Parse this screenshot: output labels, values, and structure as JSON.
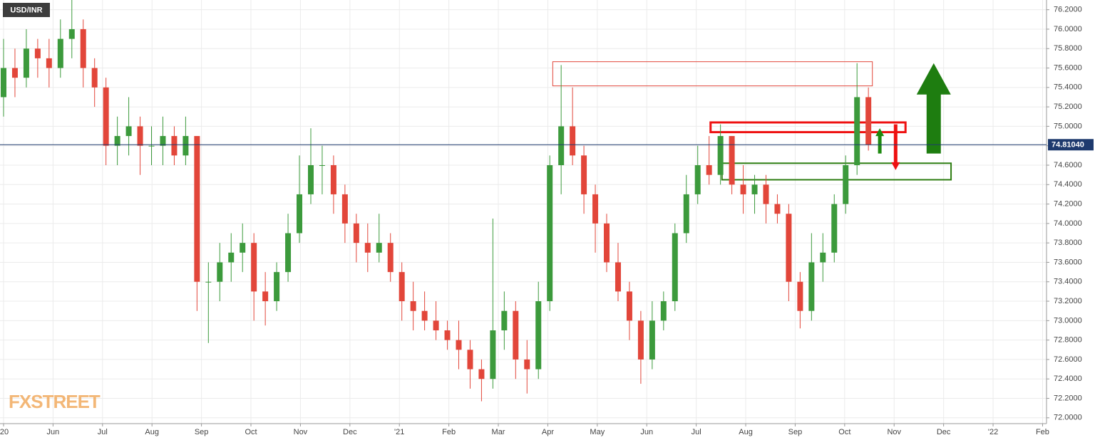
{
  "chart_data": {
    "type": "candlestick",
    "title": "USD/INR",
    "watermark": "FXSTREET",
    "x": [
      0,
      0.23,
      0.46,
      0.69,
      0.92,
      1.15,
      1.38,
      1.61,
      1.84,
      2.07,
      2.3,
      2.53,
      2.76,
      2.99,
      3.22,
      3.45,
      3.68,
      3.91,
      4.14,
      4.37,
      4.6,
      4.83,
      5.06,
      5.29,
      5.52,
      5.75,
      5.98,
      6.21,
      6.44,
      6.67,
      6.9,
      7.13,
      7.36,
      7.59,
      7.82,
      8.05,
      8.28,
      8.51,
      8.74,
      8.97,
      9.2,
      9.43,
      9.66,
      9.89,
      10.12,
      10.35,
      10.58,
      10.81,
      11.04,
      11.27,
      11.5,
      11.73,
      11.96,
      12.19,
      12.42,
      12.65,
      12.88,
      13.11,
      13.34,
      13.57,
      13.8,
      14.03,
      14.26,
      14.49,
      14.72,
      14.95,
      15.18,
      15.41,
      15.64,
      15.87,
      16.1,
      16.33,
      16.56,
      16.79,
      17.02,
      17.25,
      17.48
    ],
    "open": [
      75.3,
      75.6,
      75.5,
      75.8,
      75.7,
      75.6,
      75.9,
      76.0,
      75.6,
      75.4,
      74.8,
      74.9,
      75.0,
      74.8,
      74.8,
      74.9,
      74.7,
      74.9,
      73.4,
      73.4,
      73.6,
      73.7,
      73.8,
      73.3,
      73.2,
      73.5,
      73.9,
      74.3,
      74.6,
      74.6,
      74.3,
      74.0,
      73.8,
      73.7,
      73.8,
      73.5,
      73.2,
      73.1,
      73.0,
      72.9,
      72.8,
      72.7,
      72.5,
      72.4,
      72.9,
      73.1,
      72.6,
      72.5,
      73.2,
      74.6,
      75.0,
      74.7,
      74.3,
      74.0,
      73.6,
      73.3,
      73.0,
      72.6,
      73.0,
      73.2,
      73.9,
      74.3,
      74.6,
      74.5,
      74.9,
      74.4,
      74.3,
      74.4,
      74.2,
      74.1,
      73.4,
      73.1,
      73.6,
      73.7,
      74.2,
      74.6,
      75.3
    ],
    "high": [
      75.9,
      75.8,
      76.0,
      75.9,
      75.9,
      76.1,
      76.3,
      76.1,
      75.7,
      75.5,
      75.1,
      75.3,
      75.1,
      75.0,
      75.1,
      75.0,
      75.1,
      74.9,
      73.6,
      73.8,
      73.9,
      74.0,
      73.9,
      73.5,
      73.6,
      74.1,
      74.7,
      74.98,
      74.8,
      74.7,
      74.4,
      74.1,
      74.0,
      74.1,
      73.9,
      73.6,
      73.4,
      73.3,
      73.2,
      73.0,
      73.0,
      72.8,
      72.6,
      74.05,
      73.3,
      73.2,
      72.8,
      73.4,
      74.7,
      75.63,
      75.4,
      74.8,
      74.4,
      74.1,
      73.8,
      73.4,
      73.1,
      73.2,
      73.3,
      74.0,
      74.5,
      74.8,
      74.9,
      75.02,
      74.9,
      74.6,
      74.5,
      74.5,
      74.3,
      74.2,
      73.5,
      73.9,
      73.9,
      74.3,
      74.7,
      75.65,
      75.4
    ],
    "low": [
      75.1,
      75.3,
      75.4,
      75.5,
      75.4,
      75.5,
      75.7,
      75.4,
      75.2,
      74.6,
      74.6,
      74.7,
      74.5,
      74.6,
      74.6,
      74.6,
      74.6,
      73.1,
      72.77,
      73.2,
      73.4,
      73.5,
      73.0,
      72.95,
      73.1,
      73.4,
      73.8,
      74.2,
      74.3,
      74.1,
      73.8,
      73.6,
      73.5,
      73.6,
      73.4,
      73.0,
      72.9,
      72.9,
      72.8,
      72.7,
      72.5,
      72.3,
      72.17,
      72.3,
      72.7,
      72.4,
      72.25,
      72.4,
      73.1,
      74.3,
      74.6,
      74.1,
      73.7,
      73.5,
      73.2,
      72.8,
      72.35,
      72.5,
      72.9,
      73.1,
      73.8,
      74.2,
      74.4,
      74.4,
      74.3,
      74.1,
      74.1,
      74.0,
      74.0,
      73.2,
      72.92,
      73.0,
      73.4,
      73.6,
      74.1,
      74.5,
      74.75
    ],
    "close": [
      75.6,
      75.5,
      75.8,
      75.7,
      75.6,
      75.9,
      76.0,
      75.6,
      75.4,
      74.8,
      74.9,
      75.0,
      74.8,
      74.8,
      74.9,
      74.7,
      74.9,
      73.4,
      73.4,
      73.6,
      73.7,
      73.8,
      73.3,
      73.2,
      73.5,
      73.9,
      74.3,
      74.6,
      74.6,
      74.3,
      74.0,
      73.8,
      73.7,
      73.8,
      73.5,
      73.2,
      73.1,
      73.0,
      72.9,
      72.8,
      72.7,
      72.5,
      72.4,
      72.9,
      73.1,
      72.6,
      72.5,
      73.2,
      74.6,
      75.0,
      74.7,
      74.3,
      74.0,
      73.6,
      73.3,
      73.0,
      72.6,
      73.0,
      73.2,
      73.9,
      74.3,
      74.6,
      74.5,
      74.9,
      74.4,
      74.3,
      74.4,
      74.2,
      74.1,
      73.4,
      73.1,
      73.6,
      73.7,
      74.2,
      74.6,
      75.3,
      74.81
    ],
    "up_color": "#3c9a3c",
    "down_color": "#e2463a",
    "last_price": {
      "value": 74.8104,
      "label": "74.81040"
    },
    "last_price_color": "#1e3a6e",
    "xlim": [
      -0.072,
      21.08
    ],
    "xticks": [
      {
        "value": 0,
        "label": "'20"
      },
      {
        "value": 1,
        "label": "Jun"
      },
      {
        "value": 2,
        "label": "Jul"
      },
      {
        "value": 3,
        "label": "Aug"
      },
      {
        "value": 4,
        "label": "Sep"
      },
      {
        "value": 5,
        "label": "Oct"
      },
      {
        "value": 6,
        "label": "Nov"
      },
      {
        "value": 7,
        "label": "Dec"
      },
      {
        "value": 8,
        "label": "'21"
      },
      {
        "value": 9,
        "label": "Feb"
      },
      {
        "value": 10,
        "label": "Mar"
      },
      {
        "value": 11,
        "label": "Apr"
      },
      {
        "value": 12,
        "label": "May"
      },
      {
        "value": 13,
        "label": "Jun"
      },
      {
        "value": 14,
        "label": "Jul"
      },
      {
        "value": 15,
        "label": "Aug"
      },
      {
        "value": 16,
        "label": "Sep"
      },
      {
        "value": 17,
        "label": "Oct"
      },
      {
        "value": 18,
        "label": "Nov"
      },
      {
        "value": 19,
        "label": "Dec"
      },
      {
        "value": 20,
        "label": "'22"
      },
      {
        "value": 21,
        "label": "Feb"
      }
    ],
    "ylim": [
      71.94,
      76.3
    ],
    "yticks": [
      {
        "value": 72,
        "label": "72.0000"
      },
      {
        "value": 72.2,
        "label": "72.2000"
      },
      {
        "value": 72.4,
        "label": "72.4000"
      },
      {
        "value": 72.6,
        "label": "72.6000"
      },
      {
        "value": 72.8,
        "label": "72.8000"
      },
      {
        "value": 73,
        "label": "73.0000"
      },
      {
        "value": 73.2,
        "label": "73.2000"
      },
      {
        "value": 73.4,
        "label": "73.4000"
      },
      {
        "value": 73.6,
        "label": "73.6000"
      },
      {
        "value": 73.8,
        "label": "73.8000"
      },
      {
        "value": 74,
        "label": "74.0000"
      },
      {
        "value": 74.2,
        "label": "74.2000"
      },
      {
        "value": 74.4,
        "label": "74.4000"
      },
      {
        "value": 74.6,
        "label": "74.6000"
      },
      {
        "value": 74.8,
        "label": "74.8000"
      },
      {
        "value": 75,
        "label": "75.0000"
      },
      {
        "value": 75.2,
        "label": "75.2000"
      },
      {
        "value": 75.4,
        "label": "75.4000"
      },
      {
        "value": 75.6,
        "label": "75.6000"
      },
      {
        "value": 75.8,
        "label": "75.8000"
      },
      {
        "value": 76,
        "label": "76.0000"
      },
      {
        "value": 76.2,
        "label": "76.2000"
      }
    ],
    "grid": true,
    "zones": [
      {
        "x": [
          11.1,
          17.56
        ],
        "y": [
          75.416,
          75.665
        ],
        "color": "#e2463a",
        "width": 1
      },
      {
        "x": [
          14.29,
          18.23
        ],
        "y": [
          74.94,
          75.04
        ],
        "color": "#ee1111",
        "width": 3
      },
      {
        "x": [
          14.52,
          19.15
        ],
        "y": [
          74.45,
          74.62
        ],
        "color": "#2e7d12",
        "width": 2
      }
    ],
    "arrows": [
      {
        "x": 17.71,
        "y": [
          74.72,
          74.98
        ],
        "color": "#1e8a10",
        "size": 1
      },
      {
        "x": 18.03,
        "y": [
          75.02,
          74.55
        ],
        "color": "#ee1111",
        "size": 1
      },
      {
        "x": 18.8,
        "y": [
          74.72,
          75.65
        ],
        "color": "#1e7d10",
        "size": 4
      }
    ]
  }
}
